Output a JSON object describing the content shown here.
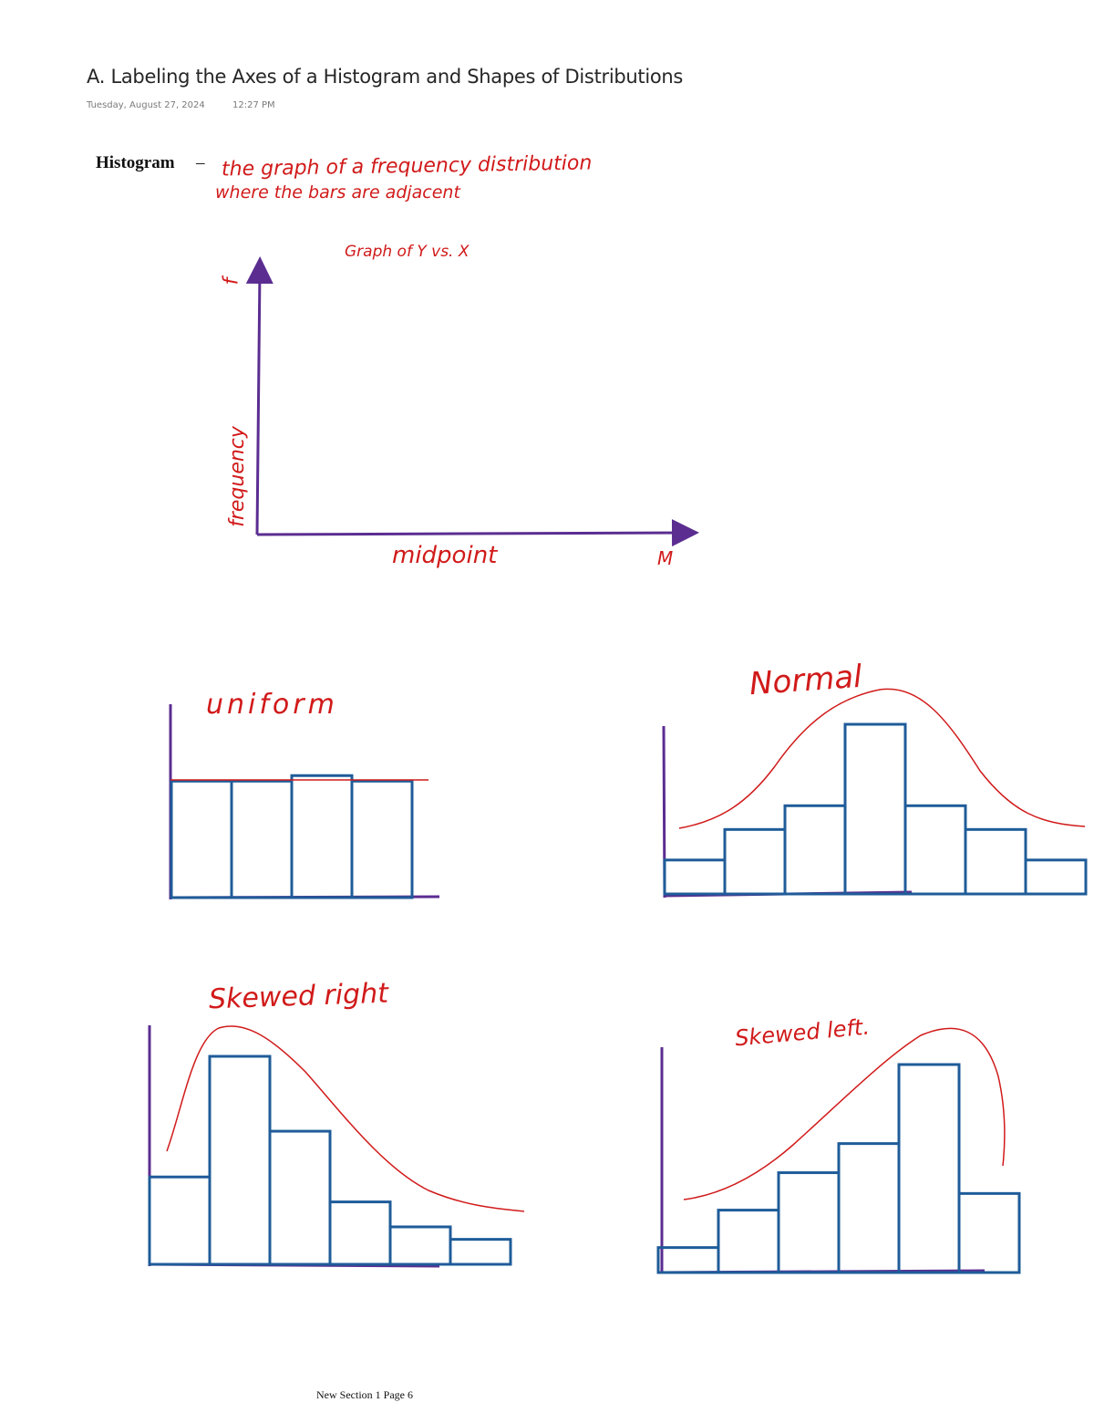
{
  "page": {
    "title": "A. Labeling the Axes of a Histogram and Shapes of Distributions",
    "date": "Tuesday, August 27, 2024",
    "time": "12:27 PM",
    "footer": "New Section 1 Page 6"
  },
  "definition": {
    "term": "Histogram",
    "dash": "–",
    "line1": "the graph of a frequency distribution",
    "line2": "where the bars are adjacent"
  },
  "axes_sketch": {
    "caption": "Graph of Y vs. X",
    "y_symbol": "f",
    "y_label": "frequency",
    "x_label": "midpoint",
    "x_symbol": "M"
  },
  "shapes": [
    {
      "label": "uniform",
      "bar_heights": [
        0.84,
        0.84,
        0.88,
        0.84
      ]
    },
    {
      "label": "Normal",
      "bar_heights": [
        0.2,
        0.38,
        0.52,
        1.0,
        0.52,
        0.38,
        0.2
      ]
    },
    {
      "label": "Skewed right",
      "bar_heights": [
        0.42,
        1.0,
        0.64,
        0.3,
        0.18,
        0.12
      ]
    },
    {
      "label": "Skewed left.",
      "bar_heights": [
        0.12,
        0.3,
        0.48,
        0.62,
        1.0,
        0.38
      ]
    }
  ],
  "colors": {
    "ink_red": "#d11a1a",
    "axis_purple": "#5b2d91",
    "bar_blue": "#1f5c99"
  }
}
